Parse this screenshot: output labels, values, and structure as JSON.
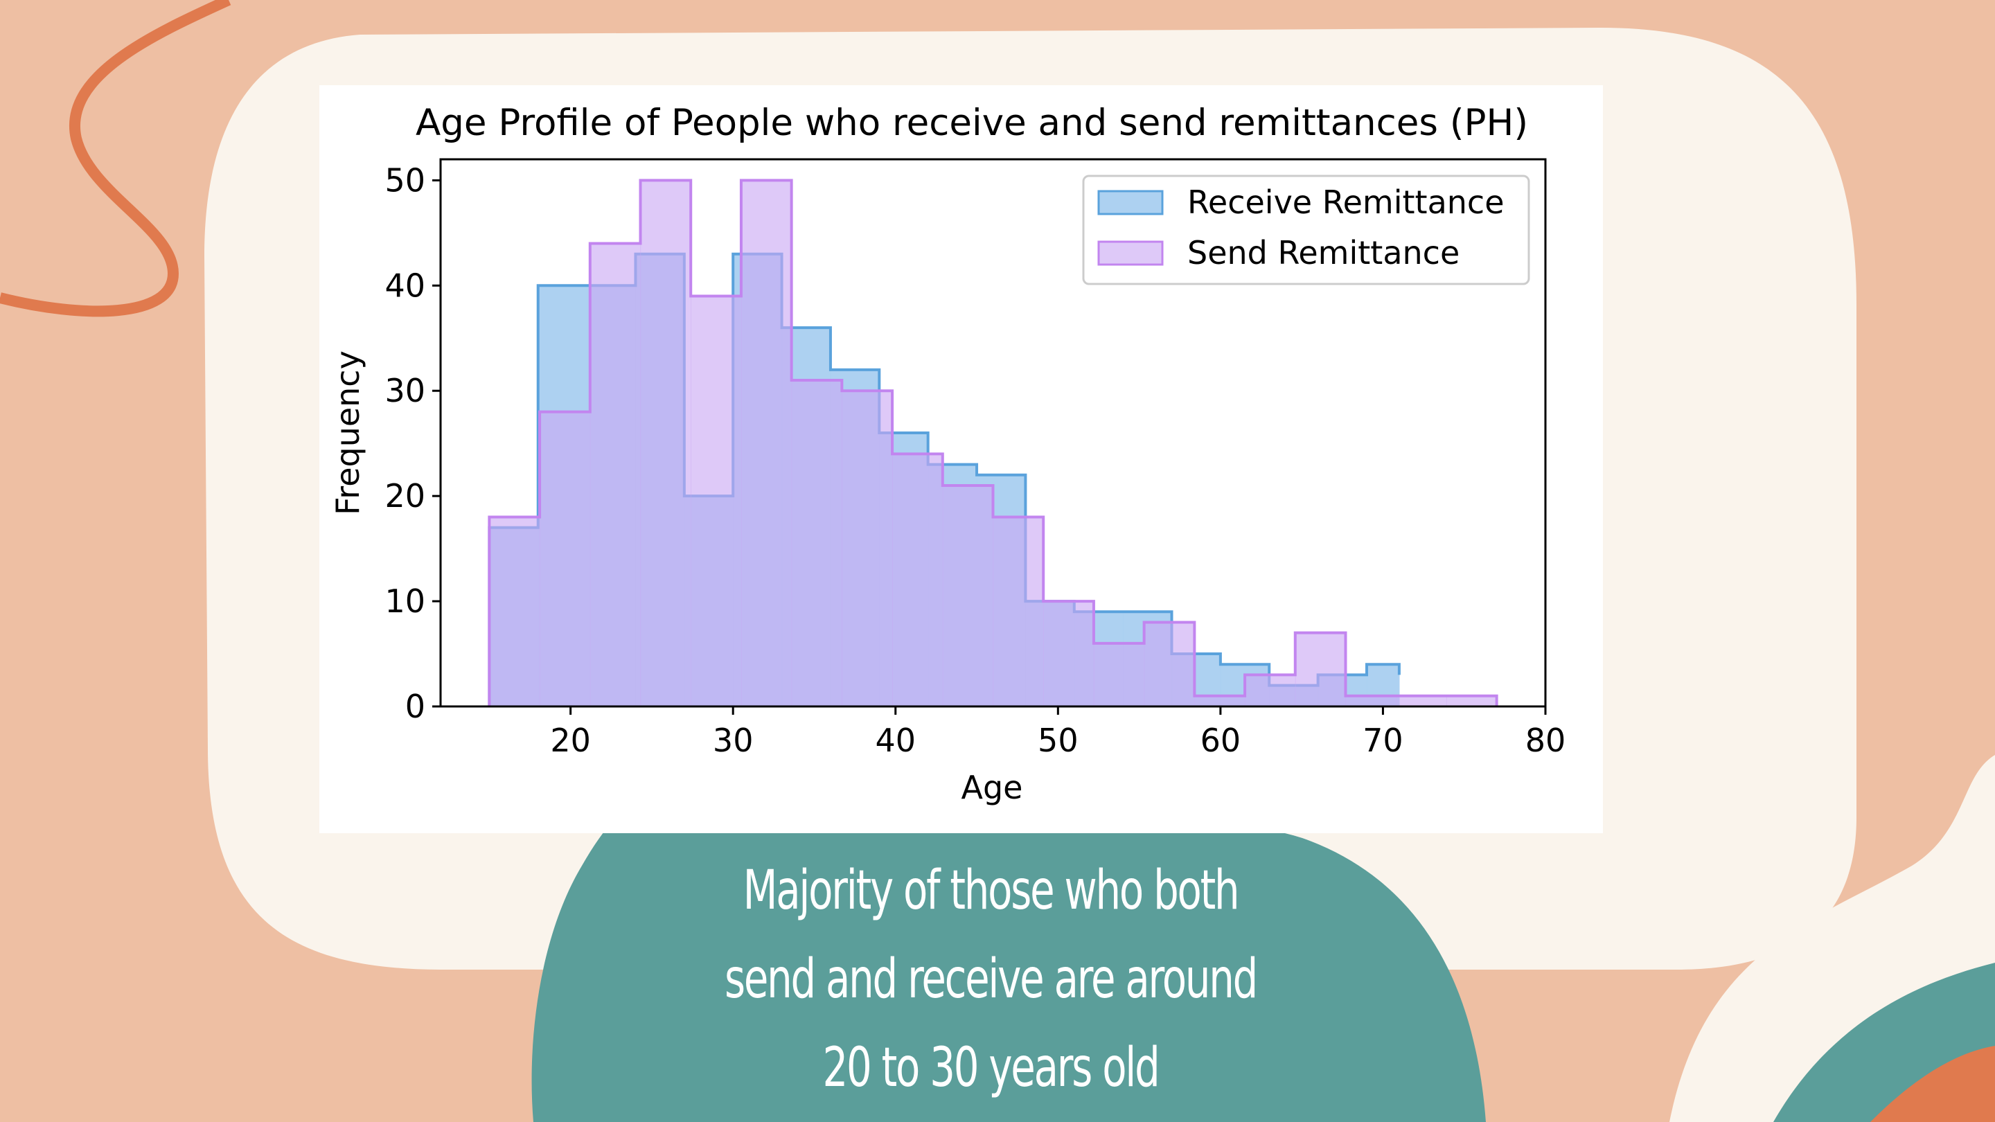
{
  "slide": {
    "caption_lines": [
      "Majority of those who both",
      "send and receive are around",
      "20 to 30 years old"
    ],
    "colors": {
      "background": "#eebfa3",
      "card": "#faf4ec",
      "teal_blob": "#5b9e9a",
      "orange_accent": "#e07a4e"
    }
  },
  "chart_data": {
    "type": "histogram",
    "title": "Age Profile of People who receive and send remittances (PH)",
    "xlabel": "Age",
    "ylabel": "Frequency",
    "xlim": [
      12,
      80
    ],
    "ylim": [
      0,
      52
    ],
    "xticks": [
      20,
      30,
      40,
      50,
      60,
      70,
      80
    ],
    "yticks": [
      0,
      10,
      20,
      30,
      40,
      50
    ],
    "legend_position": "top-right",
    "series": [
      {
        "name": "Receive Remittance",
        "fill": "#a9cff0",
        "stroke": "#5aa2dc",
        "fill_opacity": 0.95,
        "bins": [
          15,
          18,
          21,
          24,
          27,
          30,
          33,
          36,
          39,
          42,
          45,
          48,
          51,
          54,
          57,
          60,
          63,
          66,
          69,
          71
        ],
        "counts": [
          17,
          40,
          40,
          43,
          20,
          43,
          36,
          32,
          26,
          23,
          22,
          10,
          9,
          9,
          5,
          4,
          2,
          3,
          4,
          3
        ]
      },
      {
        "name": "Send Remittance",
        "fill": "#c9a8f3",
        "stroke": "#c285ef",
        "fill_opacity": 0.62,
        "bins": [
          15,
          18.1,
          21.2,
          24.3,
          27.4,
          30.5,
          33.6,
          36.7,
          39.8,
          42.9,
          46.0,
          49.1,
          52.2,
          55.3,
          58.4,
          61.5,
          64.6,
          67.7,
          70.8,
          73.9,
          77
        ],
        "counts": [
          18,
          28,
          44,
          50,
          39,
          50,
          31,
          30,
          24,
          21,
          18,
          10,
          6,
          8,
          1,
          3,
          7,
          1,
          1,
          1
        ]
      }
    ]
  }
}
